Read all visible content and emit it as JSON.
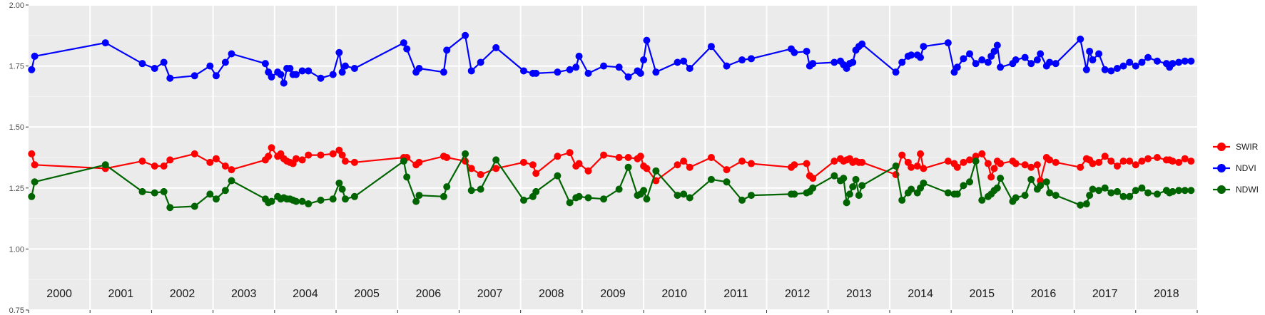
{
  "chart_data": {
    "type": "line",
    "title": "",
    "xlabel": "",
    "ylabel": "",
    "ylim": [
      0.75,
      2.0
    ],
    "xlim": [
      2000.0,
      2019.0
    ],
    "yticks": [
      0.75,
      1.0,
      1.25,
      1.5,
      1.75,
      2.0
    ],
    "ytick_labels": [
      "0.75",
      "1.00",
      "1.25",
      "1.50",
      "1.75",
      "2.00"
    ],
    "year_labels": [
      "2000",
      "2001",
      "2002",
      "2003",
      "2004",
      "2005",
      "2006",
      "2007",
      "2008",
      "2009",
      "2010",
      "2011",
      "2012",
      "2013",
      "2014",
      "2015",
      "2016",
      "2017",
      "2018"
    ],
    "grid": true,
    "legend_position": "right",
    "series": [
      {
        "name": "SWIR",
        "color": "#ff0000",
        "x": [
          2000.05,
          2000.1,
          2001.25,
          2001.85,
          2002.05,
          2002.2,
          2002.3,
          2002.7,
          2002.95,
          2003.05,
          2003.2,
          2003.3,
          2003.85,
          2003.9,
          2003.95,
          2004.05,
          2004.1,
          2004.15,
          2004.2,
          2004.25,
          2004.3,
          2004.35,
          2004.45,
          2004.55,
          2004.75,
          2004.95,
          2005.05,
          2005.1,
          2005.15,
          2005.3,
          2006.1,
          2006.15,
          2006.3,
          2006.35,
          2006.75,
          2006.8,
          2007.1,
          2007.2,
          2007.35,
          2007.6,
          2008.05,
          2008.2,
          2008.25,
          2008.6,
          2008.8,
          2008.9,
          2008.95,
          2009.1,
          2009.35,
          2009.6,
          2009.75,
          2009.9,
          2009.95,
          2010.0,
          2010.05,
          2010.2,
          2010.55,
          2010.65,
          2010.75,
          2011.1,
          2011.35,
          2011.6,
          2011.75,
          2012.4,
          2012.45,
          2012.65,
          2012.7,
          2012.75,
          2013.1,
          2013.2,
          2013.25,
          2013.3,
          2013.35,
          2013.4,
          2013.45,
          2013.5,
          2013.55,
          2014.1,
          2014.2,
          2014.3,
          2014.35,
          2014.45,
          2014.5,
          2014.55,
          2014.95,
          2015.05,
          2015.1,
          2015.2,
          2015.3,
          2015.4,
          2015.5,
          2015.6,
          2015.65,
          2015.7,
          2015.75,
          2015.8,
          2016.0,
          2016.05,
          2016.2,
          2016.3,
          2016.4,
          2016.45,
          2016.55,
          2016.6,
          2016.7,
          2017.1,
          2017.2,
          2017.25,
          2017.3,
          2017.4,
          2017.5,
          2017.6,
          2017.7,
          2017.8,
          2017.9,
          2018.0,
          2018.1,
          2018.2,
          2018.35,
          2018.5,
          2018.55,
          2018.6,
          2018.7,
          2018.8,
          2018.9
        ],
        "values": [
          1.39,
          1.345,
          1.33,
          1.36,
          1.34,
          1.34,
          1.365,
          1.39,
          1.355,
          1.37,
          1.34,
          1.325,
          1.365,
          1.38,
          1.415,
          1.38,
          1.39,
          1.37,
          1.36,
          1.355,
          1.35,
          1.37,
          1.365,
          1.385,
          1.385,
          1.39,
          1.405,
          1.385,
          1.36,
          1.355,
          1.375,
          1.375,
          1.345,
          1.355,
          1.38,
          1.375,
          1.36,
          1.33,
          1.305,
          1.33,
          1.355,
          1.345,
          1.31,
          1.38,
          1.395,
          1.34,
          1.35,
          1.32,
          1.385,
          1.375,
          1.375,
          1.37,
          1.38,
          1.34,
          1.33,
          1.28,
          1.345,
          1.36,
          1.335,
          1.375,
          1.325,
          1.36,
          1.35,
          1.335,
          1.345,
          1.35,
          1.3,
          1.29,
          1.36,
          1.37,
          1.36,
          1.365,
          1.37,
          1.355,
          1.36,
          1.355,
          1.355,
          1.305,
          1.385,
          1.355,
          1.335,
          1.34,
          1.39,
          1.33,
          1.36,
          1.35,
          1.335,
          1.355,
          1.365,
          1.38,
          1.39,
          1.35,
          1.295,
          1.33,
          1.36,
          1.35,
          1.36,
          1.35,
          1.345,
          1.335,
          1.345,
          1.28,
          1.375,
          1.365,
          1.355,
          1.335,
          1.37,
          1.365,
          1.35,
          1.355,
          1.38,
          1.36,
          1.34,
          1.36,
          1.36,
          1.345,
          1.36,
          1.37,
          1.375,
          1.365,
          1.365,
          1.36,
          1.355,
          1.37,
          1.36
        ]
      },
      {
        "name": "NDVI",
        "color": "#0000ff",
        "x": [
          2000.05,
          2000.1,
          2001.25,
          2001.85,
          2002.05,
          2002.2,
          2002.3,
          2002.7,
          2002.95,
          2003.05,
          2003.2,
          2003.3,
          2003.85,
          2003.9,
          2003.95,
          2004.05,
          2004.1,
          2004.15,
          2004.2,
          2004.25,
          2004.3,
          2004.35,
          2004.45,
          2004.55,
          2004.75,
          2004.95,
          2005.05,
          2005.1,
          2005.15,
          2005.3,
          2006.1,
          2006.15,
          2006.3,
          2006.35,
          2006.75,
          2006.8,
          2007.1,
          2007.2,
          2007.35,
          2007.6,
          2008.05,
          2008.2,
          2008.25,
          2008.6,
          2008.8,
          2008.9,
          2008.95,
          2009.1,
          2009.35,
          2009.6,
          2009.75,
          2009.9,
          2009.95,
          2010.0,
          2010.05,
          2010.2,
          2010.55,
          2010.65,
          2010.75,
          2011.1,
          2011.35,
          2011.6,
          2011.75,
          2012.4,
          2012.45,
          2012.65,
          2012.7,
          2012.75,
          2013.1,
          2013.2,
          2013.25,
          2013.3,
          2013.35,
          2013.4,
          2013.45,
          2013.5,
          2013.55,
          2014.1,
          2014.2,
          2014.3,
          2014.35,
          2014.45,
          2014.5,
          2014.55,
          2014.95,
          2015.05,
          2015.1,
          2015.2,
          2015.3,
          2015.4,
          2015.5,
          2015.6,
          2015.65,
          2015.7,
          2015.75,
          2015.8,
          2016.0,
          2016.05,
          2016.2,
          2016.3,
          2016.4,
          2016.45,
          2016.55,
          2016.6,
          2016.7,
          2017.1,
          2017.2,
          2017.25,
          2017.3,
          2017.4,
          2017.5,
          2017.6,
          2017.7,
          2017.8,
          2017.9,
          2018.0,
          2018.1,
          2018.2,
          2018.35,
          2018.5,
          2018.55,
          2018.6,
          2018.7,
          2018.8,
          2018.9
        ],
        "values": [
          1.735,
          1.79,
          1.845,
          1.76,
          1.74,
          1.765,
          1.7,
          1.71,
          1.75,
          1.71,
          1.765,
          1.8,
          1.76,
          1.725,
          1.705,
          1.725,
          1.715,
          1.68,
          1.74,
          1.74,
          1.715,
          1.715,
          1.73,
          1.73,
          1.7,
          1.715,
          1.805,
          1.725,
          1.75,
          1.74,
          1.845,
          1.82,
          1.725,
          1.74,
          1.725,
          1.815,
          1.875,
          1.73,
          1.765,
          1.825,
          1.73,
          1.72,
          1.72,
          1.725,
          1.735,
          1.745,
          1.79,
          1.72,
          1.75,
          1.745,
          1.705,
          1.73,
          1.72,
          1.775,
          1.855,
          1.725,
          1.765,
          1.77,
          1.74,
          1.83,
          1.75,
          1.775,
          1.78,
          1.82,
          1.805,
          1.81,
          1.75,
          1.76,
          1.765,
          1.77,
          1.755,
          1.74,
          1.76,
          1.765,
          1.815,
          1.83,
          1.84,
          1.725,
          1.765,
          1.79,
          1.795,
          1.795,
          1.785,
          1.83,
          1.845,
          1.725,
          1.745,
          1.78,
          1.8,
          1.76,
          1.775,
          1.765,
          1.79,
          1.81,
          1.835,
          1.745,
          1.76,
          1.775,
          1.785,
          1.76,
          1.775,
          1.8,
          1.75,
          1.765,
          1.76,
          1.86,
          1.735,
          1.81,
          1.775,
          1.8,
          1.735,
          1.73,
          1.74,
          1.75,
          1.765,
          1.75,
          1.765,
          1.785,
          1.77,
          1.76,
          1.745,
          1.76,
          1.765,
          1.77,
          1.77
        ]
      },
      {
        "name": "NDWI",
        "color": "#006400",
        "x": [
          2000.05,
          2000.1,
          2001.25,
          2001.85,
          2002.05,
          2002.2,
          2002.3,
          2002.7,
          2002.95,
          2003.05,
          2003.2,
          2003.3,
          2003.85,
          2003.9,
          2003.95,
          2004.05,
          2004.1,
          2004.15,
          2004.2,
          2004.25,
          2004.3,
          2004.35,
          2004.45,
          2004.55,
          2004.75,
          2004.95,
          2005.05,
          2005.1,
          2005.15,
          2005.3,
          2006.1,
          2006.15,
          2006.3,
          2006.35,
          2006.75,
          2006.8,
          2007.1,
          2007.2,
          2007.35,
          2007.6,
          2008.05,
          2008.2,
          2008.25,
          2008.6,
          2008.8,
          2008.9,
          2008.95,
          2009.1,
          2009.35,
          2009.6,
          2009.75,
          2009.9,
          2009.95,
          2010.0,
          2010.05,
          2010.2,
          2010.55,
          2010.65,
          2010.75,
          2011.1,
          2011.35,
          2011.6,
          2011.75,
          2012.4,
          2012.45,
          2012.65,
          2012.7,
          2012.75,
          2013.1,
          2013.2,
          2013.25,
          2013.3,
          2013.35,
          2013.4,
          2013.45,
          2013.5,
          2013.55,
          2014.1,
          2014.2,
          2014.3,
          2014.35,
          2014.45,
          2014.5,
          2014.55,
          2014.95,
          2015.05,
          2015.1,
          2015.2,
          2015.3,
          2015.4,
          2015.5,
          2015.6,
          2015.65,
          2015.7,
          2015.75,
          2015.8,
          2016.0,
          2016.05,
          2016.2,
          2016.3,
          2016.4,
          2016.45,
          2016.55,
          2016.6,
          2016.7,
          2017.1,
          2017.2,
          2017.25,
          2017.3,
          2017.4,
          2017.5,
          2017.6,
          2017.7,
          2017.8,
          2017.9,
          2018.0,
          2018.1,
          2018.2,
          2018.35,
          2018.5,
          2018.55,
          2018.6,
          2018.7,
          2018.8,
          2018.9
        ],
        "values": [
          1.215,
          1.275,
          1.345,
          1.235,
          1.23,
          1.235,
          1.17,
          1.175,
          1.225,
          1.205,
          1.24,
          1.28,
          1.205,
          1.19,
          1.195,
          1.215,
          1.205,
          1.21,
          1.205,
          1.205,
          1.2,
          1.195,
          1.195,
          1.185,
          1.2,
          1.205,
          1.27,
          1.245,
          1.205,
          1.215,
          1.36,
          1.295,
          1.195,
          1.22,
          1.215,
          1.255,
          1.39,
          1.24,
          1.245,
          1.365,
          1.2,
          1.215,
          1.235,
          1.3,
          1.19,
          1.21,
          1.215,
          1.21,
          1.205,
          1.245,
          1.335,
          1.22,
          1.225,
          1.24,
          1.205,
          1.32,
          1.22,
          1.225,
          1.21,
          1.285,
          1.275,
          1.2,
          1.22,
          1.225,
          1.225,
          1.23,
          1.235,
          1.25,
          1.3,
          1.28,
          1.29,
          1.19,
          1.225,
          1.255,
          1.285,
          1.22,
          1.26,
          1.34,
          1.2,
          1.23,
          1.245,
          1.23,
          1.25,
          1.27,
          1.23,
          1.225,
          1.225,
          1.26,
          1.275,
          1.36,
          1.2,
          1.215,
          1.225,
          1.24,
          1.25,
          1.29,
          1.195,
          1.21,
          1.22,
          1.285,
          1.245,
          1.26,
          1.275,
          1.23,
          1.22,
          1.18,
          1.185,
          1.22,
          1.245,
          1.24,
          1.25,
          1.23,
          1.235,
          1.215,
          1.215,
          1.24,
          1.25,
          1.23,
          1.225,
          1.24,
          1.23,
          1.235,
          1.24,
          1.24,
          1.24
        ]
      }
    ]
  }
}
